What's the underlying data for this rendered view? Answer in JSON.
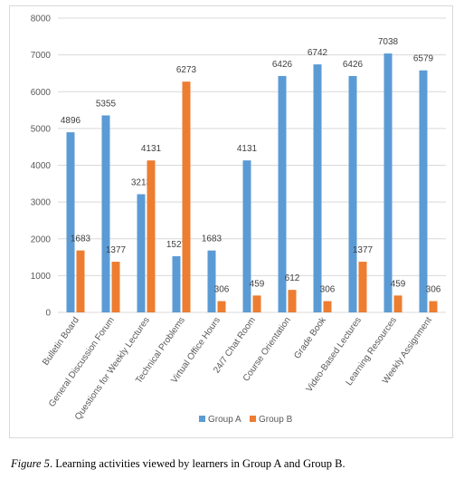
{
  "chart_data": {
    "type": "bar",
    "categories": [
      "Bulletin Board",
      "General Discussion Forum",
      "Questions for Weekly Lectures",
      "Technical Problems",
      "Virtual Office Hours",
      "24/7 Chat Room",
      "Course Orientation",
      "Grade Book",
      "Video-Based Lectures",
      "Learning Resources",
      "Weekly Assignment"
    ],
    "series": [
      {
        "name": "Group A",
        "color": "#5b9bd5",
        "values": [
          4896,
          5355,
          3213,
          1527,
          1683,
          4131,
          6426,
          6742,
          6426,
          7038,
          6579
        ]
      },
      {
        "name": "Group B",
        "color": "#ed7d31",
        "values": [
          1683,
          1377,
          4131,
          6273,
          306,
          459,
          612,
          306,
          1377,
          459,
          306
        ]
      }
    ],
    "ylim": [
      0,
      8000
    ],
    "yticks": [
      "0",
      "1000",
      "2000",
      "3000",
      "4000",
      "5000",
      "6000",
      "7000",
      "8000"
    ],
    "grid": true,
    "legend": "bottom"
  },
  "caption": {
    "figure_label": "Figure 5",
    "text": ". Learning activities viewed by learners in Group A and Group B."
  }
}
